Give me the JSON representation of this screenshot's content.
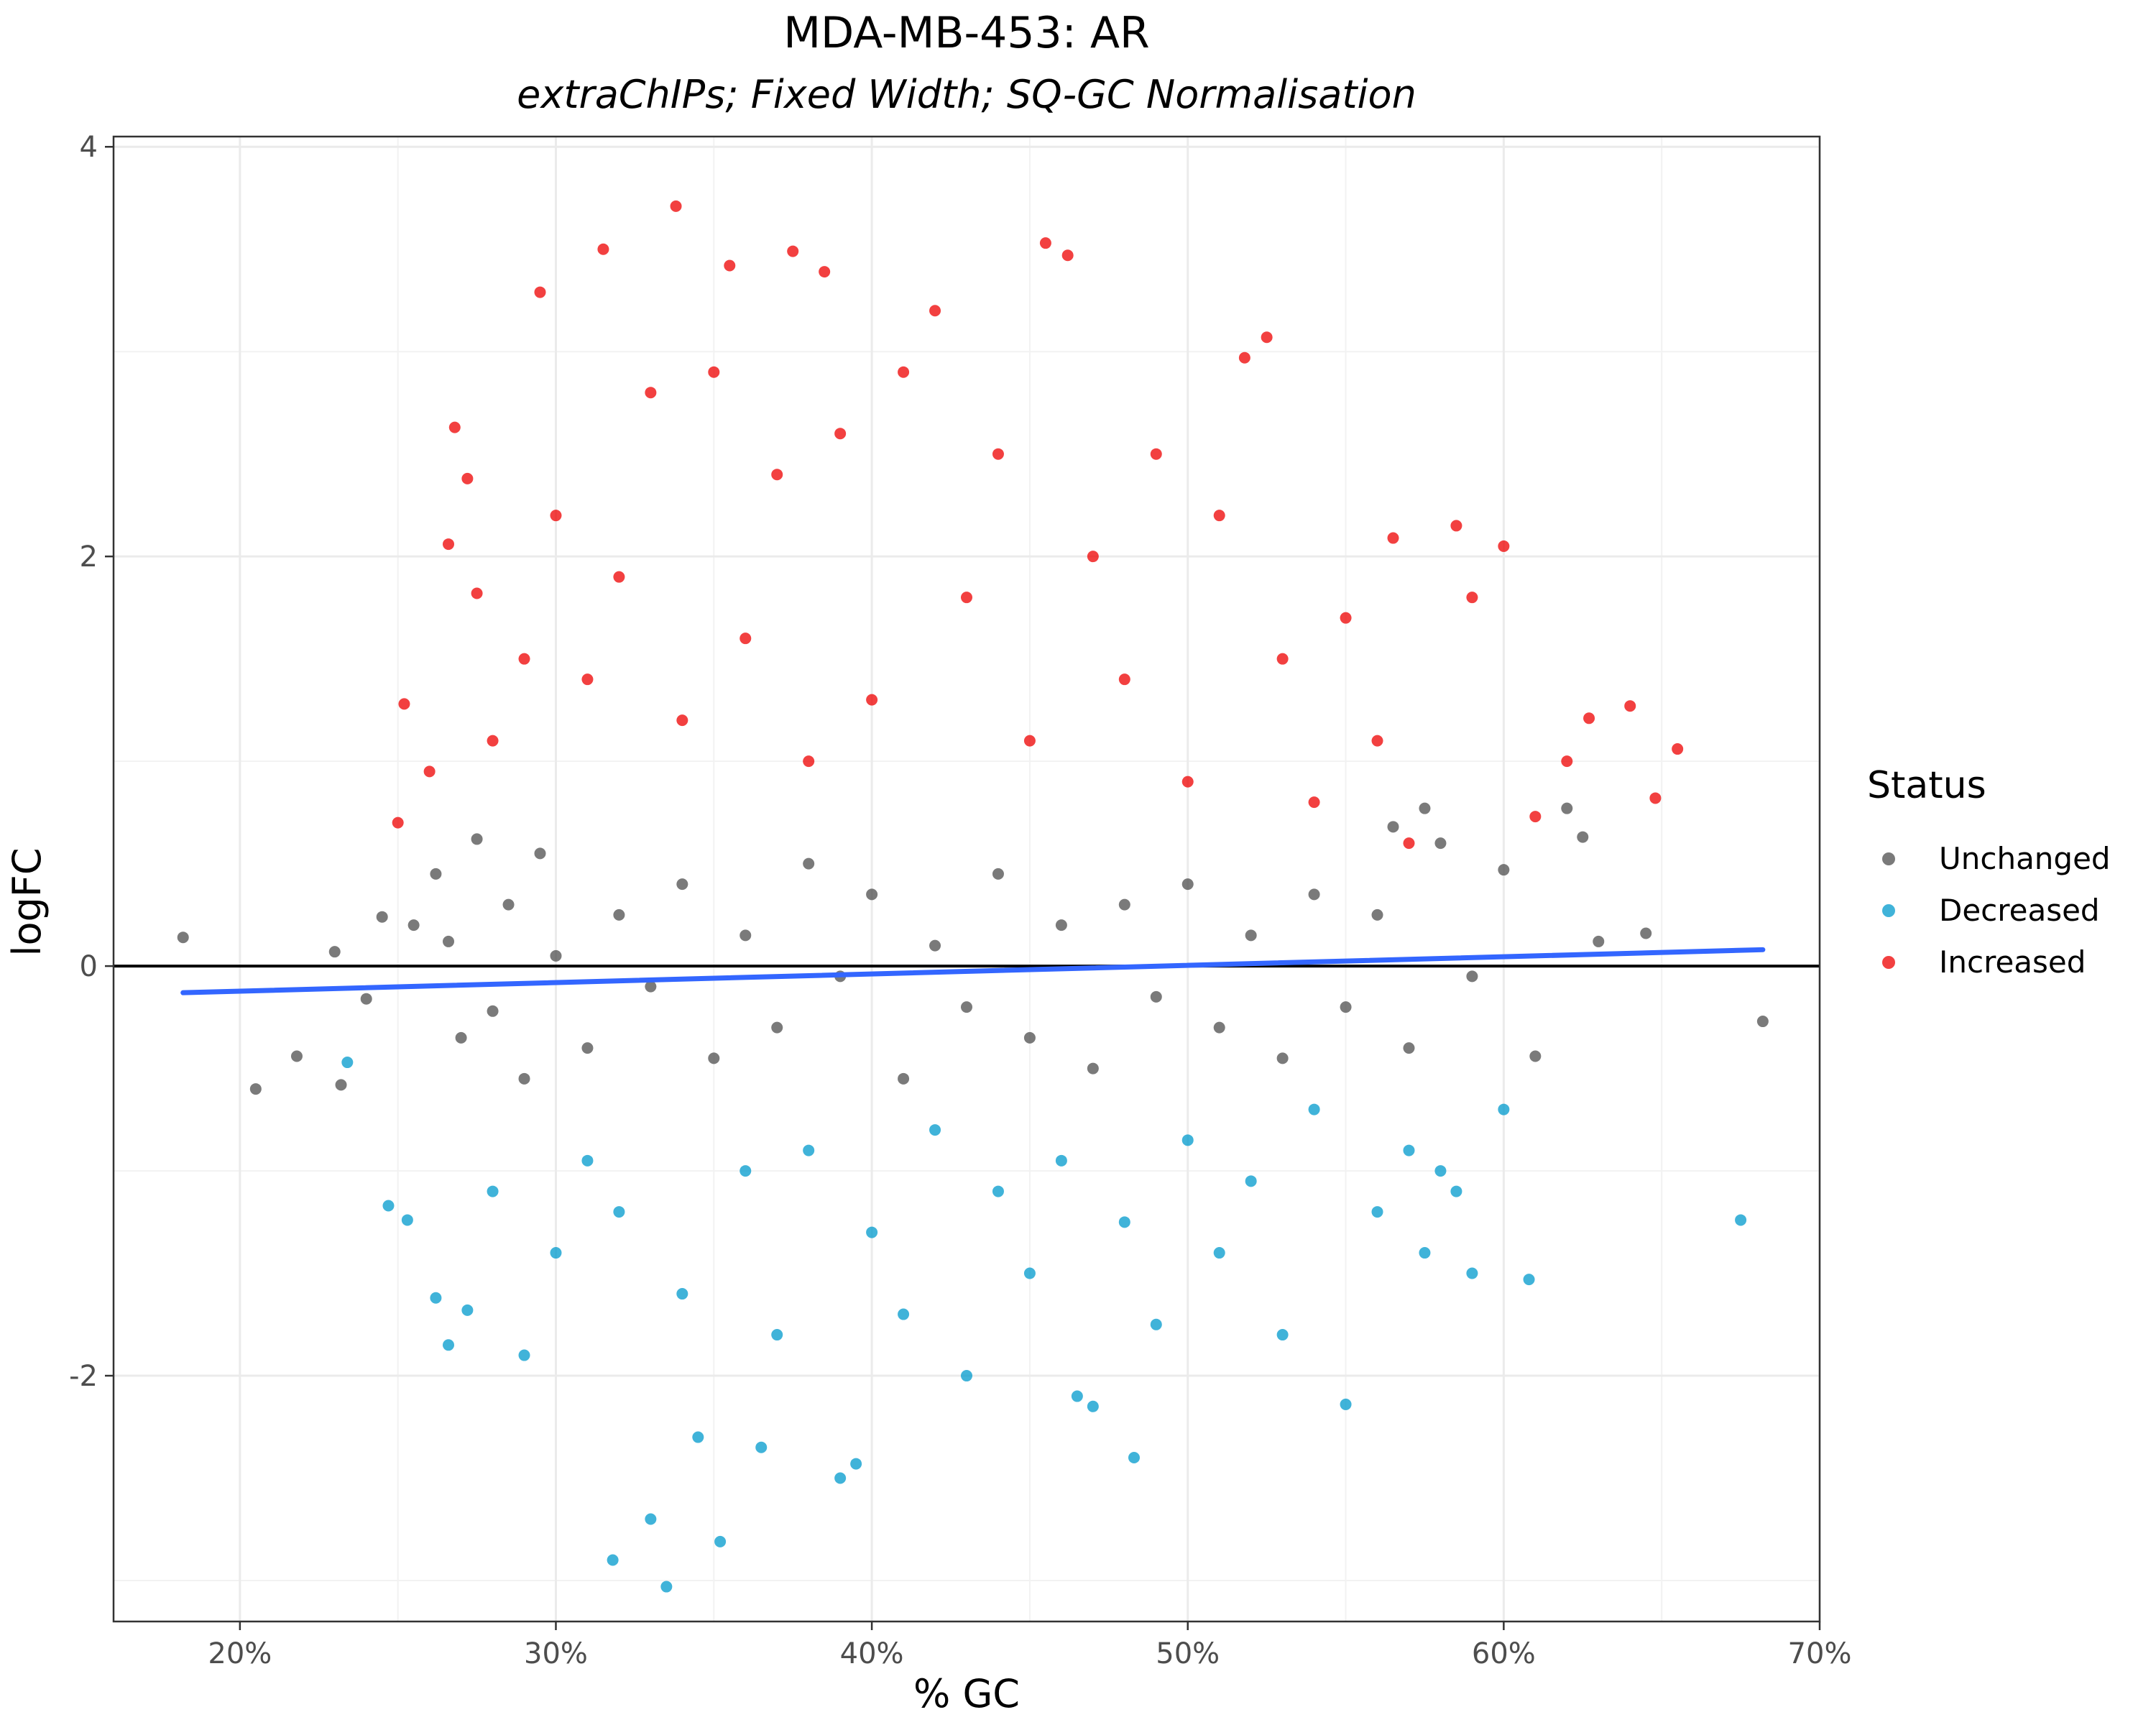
{
  "chart_data": {
    "type": "scatter",
    "title": "MDA-MB-453: AR",
    "subtitle": "extraChIPs; Fixed Width; SQ-GC Normalisation",
    "xlabel": "% GC",
    "ylabel": "logFC",
    "xlim": [
      0.16,
      0.7
    ],
    "ylim": [
      -3.2,
      4.05
    ],
    "x_ticks": [
      0.2,
      0.3,
      0.4,
      0.5,
      0.6,
      0.7
    ],
    "x_tick_labels": [
      "20%",
      "30%",
      "40%",
      "50%",
      "60%",
      "70%"
    ],
    "y_ticks": [
      -2,
      0,
      2,
      4
    ],
    "y_tick_labels": [
      "-2",
      "0",
      "2",
      "4"
    ],
    "grid": true,
    "legend": {
      "title": "Status",
      "position": "right",
      "entries": [
        {
          "label": "Unchanged",
          "color": "#4D4D4D"
        },
        {
          "label": "Decreased",
          "color": "#0099CC"
        },
        {
          "label": "Increased",
          "color": "#EE0000"
        }
      ]
    },
    "reference_line": {
      "y": 0,
      "color": "#000000"
    },
    "trend_line": {
      "color": "#3366FF",
      "points": [
        [
          0.182,
          -0.13
        ],
        [
          0.682,
          0.08
        ]
      ]
    },
    "series": [
      {
        "name": "Unchanged",
        "color": "#4D4D4D",
        "points": [
          [
            0.182,
            0.14
          ],
          [
            0.205,
            -0.6
          ],
          [
            0.218,
            -0.44
          ],
          [
            0.23,
            0.07
          ],
          [
            0.232,
            -0.58
          ],
          [
            0.24,
            -0.16
          ],
          [
            0.245,
            0.24
          ],
          [
            0.255,
            0.2
          ],
          [
            0.262,
            0.45
          ],
          [
            0.266,
            0.12
          ],
          [
            0.27,
            -0.35
          ],
          [
            0.275,
            0.62
          ],
          [
            0.28,
            -0.22
          ],
          [
            0.285,
            0.3
          ],
          [
            0.29,
            -0.55
          ],
          [
            0.295,
            0.55
          ],
          [
            0.3,
            0.05
          ],
          [
            0.31,
            -0.4
          ],
          [
            0.32,
            0.25
          ],
          [
            0.33,
            -0.1
          ],
          [
            0.34,
            0.4
          ],
          [
            0.35,
            -0.45
          ],
          [
            0.36,
            0.15
          ],
          [
            0.37,
            -0.3
          ],
          [
            0.38,
            0.5
          ],
          [
            0.39,
            -0.05
          ],
          [
            0.4,
            0.35
          ],
          [
            0.41,
            -0.55
          ],
          [
            0.42,
            0.1
          ],
          [
            0.43,
            -0.2
          ],
          [
            0.44,
            0.45
          ],
          [
            0.45,
            -0.35
          ],
          [
            0.46,
            0.2
          ],
          [
            0.47,
            -0.5
          ],
          [
            0.48,
            0.3
          ],
          [
            0.49,
            -0.15
          ],
          [
            0.5,
            0.4
          ],
          [
            0.51,
            -0.3
          ],
          [
            0.52,
            0.15
          ],
          [
            0.53,
            -0.45
          ],
          [
            0.54,
            0.35
          ],
          [
            0.55,
            -0.2
          ],
          [
            0.56,
            0.25
          ],
          [
            0.57,
            -0.4
          ],
          [
            0.58,
            0.6
          ],
          [
            0.59,
            -0.05
          ],
          [
            0.6,
            0.47
          ],
          [
            0.61,
            -0.44
          ],
          [
            0.62,
            0.77
          ],
          [
            0.625,
            0.63
          ],
          [
            0.63,
            0.12
          ],
          [
            0.645,
            0.16
          ],
          [
            0.682,
            -0.27
          ],
          [
            0.575,
            0.77
          ],
          [
            0.565,
            0.68
          ]
        ]
      },
      {
        "name": "Decreased",
        "color": "#0099CC",
        "points": [
          [
            0.234,
            -0.47
          ],
          [
            0.247,
            -1.17
          ],
          [
            0.253,
            -1.24
          ],
          [
            0.262,
            -1.62
          ],
          [
            0.266,
            -1.85
          ],
          [
            0.272,
            -1.68
          ],
          [
            0.28,
            -1.1
          ],
          [
            0.29,
            -1.9
          ],
          [
            0.3,
            -1.4
          ],
          [
            0.31,
            -0.95
          ],
          [
            0.318,
            -2.9
          ],
          [
            0.32,
            -1.2
          ],
          [
            0.33,
            -2.7
          ],
          [
            0.335,
            -3.03
          ],
          [
            0.34,
            -1.6
          ],
          [
            0.345,
            -2.3
          ],
          [
            0.352,
            -2.81
          ],
          [
            0.36,
            -1.0
          ],
          [
            0.365,
            -2.35
          ],
          [
            0.37,
            -1.8
          ],
          [
            0.38,
            -0.9
          ],
          [
            0.39,
            -2.5
          ],
          [
            0.4,
            -1.3
          ],
          [
            0.41,
            -1.7
          ],
          [
            0.42,
            -0.8
          ],
          [
            0.43,
            -2.0
          ],
          [
            0.44,
            -1.1
          ],
          [
            0.45,
            -1.5
          ],
          [
            0.46,
            -0.95
          ],
          [
            0.47,
            -2.15
          ],
          [
            0.48,
            -1.25
          ],
          [
            0.49,
            -1.75
          ],
          [
            0.5,
            -0.85
          ],
          [
            0.51,
            -1.4
          ],
          [
            0.52,
            -1.05
          ],
          [
            0.53,
            -1.8
          ],
          [
            0.54,
            -0.7
          ],
          [
            0.55,
            -2.14
          ],
          [
            0.56,
            -1.2
          ],
          [
            0.57,
            -0.9
          ],
          [
            0.58,
            -1.0
          ],
          [
            0.59,
            -1.5
          ],
          [
            0.6,
            -0.7
          ],
          [
            0.608,
            -1.53
          ],
          [
            0.675,
            -1.24
          ],
          [
            0.575,
            -1.4
          ],
          [
            0.585,
            -1.1
          ],
          [
            0.483,
            -2.4
          ],
          [
            0.465,
            -2.1
          ],
          [
            0.395,
            -2.43
          ]
        ]
      },
      {
        "name": "Increased",
        "color": "#EE0000",
        "points": [
          [
            0.25,
            0.7
          ],
          [
            0.252,
            1.28
          ],
          [
            0.26,
            0.95
          ],
          [
            0.266,
            2.06
          ],
          [
            0.268,
            2.63
          ],
          [
            0.272,
            2.38
          ],
          [
            0.275,
            1.82
          ],
          [
            0.28,
            1.1
          ],
          [
            0.29,
            1.5
          ],
          [
            0.295,
            3.29
          ],
          [
            0.3,
            2.2
          ],
          [
            0.31,
            1.4
          ],
          [
            0.315,
            3.5
          ],
          [
            0.32,
            1.9
          ],
          [
            0.33,
            2.8
          ],
          [
            0.338,
            3.71
          ],
          [
            0.34,
            1.2
          ],
          [
            0.35,
            2.9
          ],
          [
            0.355,
            3.42
          ],
          [
            0.36,
            1.6
          ],
          [
            0.37,
            2.4
          ],
          [
            0.375,
            3.49
          ],
          [
            0.38,
            1.0
          ],
          [
            0.385,
            3.39
          ],
          [
            0.39,
            2.6
          ],
          [
            0.4,
            1.3
          ],
          [
            0.41,
            2.9
          ],
          [
            0.42,
            3.2
          ],
          [
            0.43,
            1.8
          ],
          [
            0.44,
            2.5
          ],
          [
            0.45,
            1.1
          ],
          [
            0.455,
            3.53
          ],
          [
            0.462,
            3.47
          ],
          [
            0.47,
            2.0
          ],
          [
            0.48,
            1.4
          ],
          [
            0.49,
            2.5
          ],
          [
            0.5,
            0.9
          ],
          [
            0.51,
            2.2
          ],
          [
            0.518,
            2.97
          ],
          [
            0.525,
            3.07
          ],
          [
            0.53,
            1.5
          ],
          [
            0.54,
            0.8
          ],
          [
            0.55,
            1.7
          ],
          [
            0.56,
            1.1
          ],
          [
            0.565,
            2.09
          ],
          [
            0.585,
            2.15
          ],
          [
            0.59,
            1.8
          ],
          [
            0.6,
            2.05
          ],
          [
            0.61,
            0.73
          ],
          [
            0.62,
            1.0
          ],
          [
            0.627,
            1.21
          ],
          [
            0.64,
            1.27
          ],
          [
            0.648,
            0.82
          ],
          [
            0.655,
            1.06
          ],
          [
            0.57,
            0.6
          ]
        ]
      }
    ]
  }
}
